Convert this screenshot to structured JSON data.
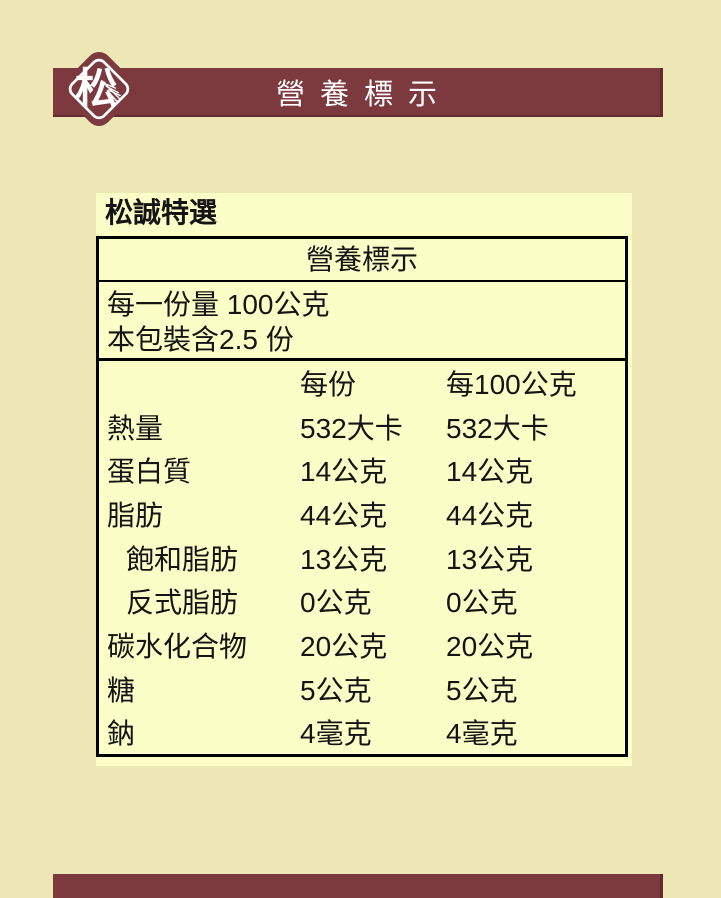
{
  "header": {
    "title": "營養標示",
    "logo": {
      "glyph": "松"
    }
  },
  "panel": {
    "brand": "松誠特選",
    "table": {
      "title": "營養標示",
      "serving_line": "每一份量 100公克",
      "package_line": "本包裝含2.5 份",
      "columns": {
        "per_serving": "每份",
        "per_100g": "每100公克"
      },
      "rows": [
        {
          "label": "熱量",
          "per_serving": "532大卡",
          "per_100g": "532大卡",
          "indent": false
        },
        {
          "label": "蛋白質",
          "per_serving": "14公克",
          "per_100g": "14公克",
          "indent": false
        },
        {
          "label": "脂肪",
          "per_serving": "44公克",
          "per_100g": "44公克",
          "indent": false
        },
        {
          "label": "飽和脂肪",
          "per_serving": "13公克",
          "per_100g": "13公克",
          "indent": true
        },
        {
          "label": "反式脂肪",
          "per_serving": "0公克",
          "per_100g": "0公克",
          "indent": true
        },
        {
          "label": "碳水化合物",
          "per_serving": "20公克",
          "per_100g": "20公克",
          "indent": false
        },
        {
          "label": "糖",
          "per_serving": "5公克",
          "per_100g": "5公克",
          "indent": false
        },
        {
          "label": "鈉",
          "per_serving": "4毫克",
          "per_100g": "4毫克",
          "indent": false
        }
      ]
    }
  },
  "colors": {
    "page_bg": "#EDE7B6",
    "panel_bg": "#FCFEC8",
    "accent": "#7C393E",
    "accent_dark": "#602C31",
    "text": "#141414",
    "header_text": "#FFFFFF"
  }
}
